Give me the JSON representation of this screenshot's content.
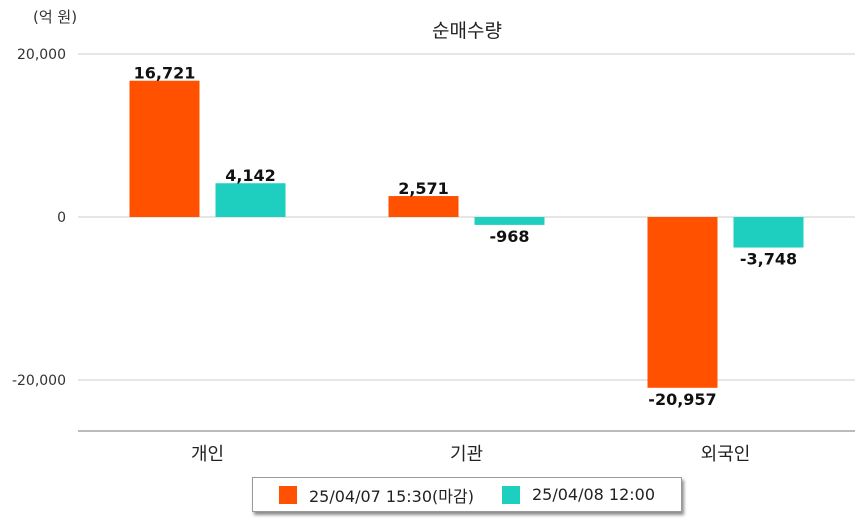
{
  "chart_data": {
    "type": "bar",
    "title": "순매수량",
    "unit_label": "(억 원)",
    "categories": [
      "개인",
      "기관",
      "외국인"
    ],
    "series": [
      {
        "name": "25/04/07 15:30(마감)",
        "color": "#ff5100",
        "values": [
          16721,
          2571,
          -20957
        ],
        "labels": [
          "16,721",
          "2,571",
          "-20,957"
        ]
      },
      {
        "name": "25/04/08 12:00",
        "color": "#1ecfbf",
        "values": [
          4142,
          -968,
          -3748
        ],
        "labels": [
          "4,142",
          "-968",
          "-3,748"
        ]
      }
    ],
    "y_ticks": [
      {
        "value": 20000,
        "label": "20,000"
      },
      {
        "value": 0,
        "label": "0"
      },
      {
        "value": -20000,
        "label": "-20,000"
      }
    ],
    "ylim": [
      -26000,
      20000
    ],
    "grid": true,
    "legend_position": "bottom"
  }
}
